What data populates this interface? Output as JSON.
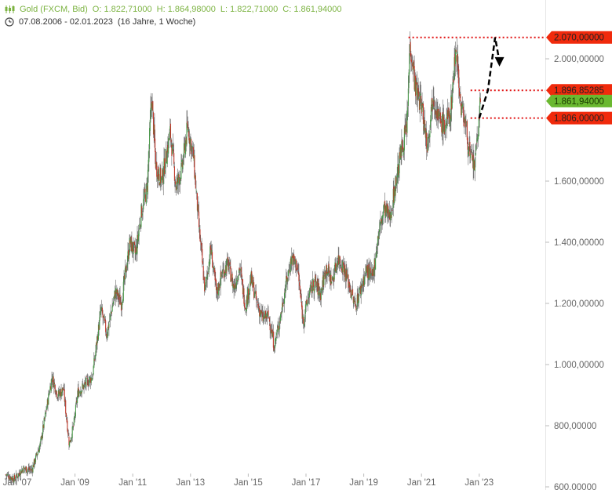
{
  "header": {
    "instrument": "Gold (FXCM, Bid)",
    "open": "O: 1.822,71000",
    "high": "H: 1.864,98000",
    "low": "L: 1.822,71000",
    "close": "C: 1.861,94000",
    "range": "07.08.2006 - 02.01.2023",
    "span": "(16 Jahre, 1 Woche)",
    "icon_chart": "candlestick-icon",
    "icon_clock": "clock-icon"
  },
  "colors": {
    "up": "#4a9a4a",
    "down": "#c0392b",
    "wick": "#666666",
    "level_line": "#e01010",
    "tag_red": "#f02a0c",
    "tag_green": "#6ab830",
    "axis_text": "#666666",
    "projection": "#000000"
  },
  "chart_data": {
    "type": "line",
    "title": "",
    "xlabel": "",
    "ylabel": "",
    "ylim": [
      600,
      2150
    ],
    "y_ticks": [
      {
        "value": 600,
        "label": "600,00000"
      },
      {
        "value": 800,
        "label": "800,00000"
      },
      {
        "value": 1000,
        "label": "1.000,00000"
      },
      {
        "value": 1200,
        "label": "1.200,00000"
      },
      {
        "value": 1400,
        "label": "1.400,00000"
      },
      {
        "value": 1600,
        "label": "1.600,00000"
      },
      {
        "value": 2000,
        "label": "2.000,00000"
      }
    ],
    "x_ticks": [
      {
        "year": 2007,
        "label": "Jan '07"
      },
      {
        "year": 2009,
        "label": "Jan '09"
      },
      {
        "year": 2011,
        "label": "Jan '11"
      },
      {
        "year": 2013,
        "label": "Jan '13"
      },
      {
        "year": 2015,
        "label": "Jan '15"
      },
      {
        "year": 2017,
        "label": "Jan '17"
      },
      {
        "year": 2019,
        "label": "Jan '19"
      },
      {
        "year": 2021,
        "label": "Jan '21"
      },
      {
        "year": 2023,
        "label": "Jan '23"
      }
    ],
    "xlim": [
      2006.6,
      2025.5
    ],
    "series": [
      {
        "points": [
          [
            2006.6,
            640
          ],
          [
            2006.9,
            625
          ],
          [
            2007.2,
            660
          ],
          [
            2007.5,
            655
          ],
          [
            2007.8,
            740
          ],
          [
            2008.0,
            850
          ],
          [
            2008.2,
            960
          ],
          [
            2008.4,
            900
          ],
          [
            2008.6,
            920
          ],
          [
            2008.8,
            740
          ],
          [
            2008.95,
            800
          ],
          [
            2009.1,
            910
          ],
          [
            2009.4,
            940
          ],
          [
            2009.6,
            960
          ],
          [
            2009.9,
            1180
          ],
          [
            2010.1,
            1100
          ],
          [
            2010.4,
            1240
          ],
          [
            2010.6,
            1200
          ],
          [
            2010.9,
            1400
          ],
          [
            2011.1,
            1360
          ],
          [
            2011.3,
            1500
          ],
          [
            2011.5,
            1580
          ],
          [
            2011.65,
            1880
          ],
          [
            2011.8,
            1650
          ],
          [
            2012.0,
            1600
          ],
          [
            2012.3,
            1760
          ],
          [
            2012.5,
            1580
          ],
          [
            2012.7,
            1640
          ],
          [
            2012.9,
            1780
          ],
          [
            2013.1,
            1680
          ],
          [
            2013.3,
            1440
          ],
          [
            2013.5,
            1240
          ],
          [
            2013.7,
            1380
          ],
          [
            2013.9,
            1230
          ],
          [
            2014.1,
            1300
          ],
          [
            2014.3,
            1330
          ],
          [
            2014.5,
            1250
          ],
          [
            2014.7,
            1320
          ],
          [
            2014.9,
            1190
          ],
          [
            2015.1,
            1280
          ],
          [
            2015.3,
            1200
          ],
          [
            2015.5,
            1150
          ],
          [
            2015.7,
            1160
          ],
          [
            2015.9,
            1060
          ],
          [
            2016.1,
            1150
          ],
          [
            2016.3,
            1260
          ],
          [
            2016.5,
            1350
          ],
          [
            2016.7,
            1320
          ],
          [
            2016.9,
            1140
          ],
          [
            2017.1,
            1230
          ],
          [
            2017.3,
            1270
          ],
          [
            2017.5,
            1230
          ],
          [
            2017.7,
            1320
          ],
          [
            2017.9,
            1270
          ],
          [
            2018.1,
            1350
          ],
          [
            2018.3,
            1320
          ],
          [
            2018.5,
            1260
          ],
          [
            2018.7,
            1190
          ],
          [
            2018.9,
            1250
          ],
          [
            2019.1,
            1310
          ],
          [
            2019.3,
            1280
          ],
          [
            2019.5,
            1420
          ],
          [
            2019.7,
            1510
          ],
          [
            2019.9,
            1480
          ],
          [
            2020.1,
            1590
          ],
          [
            2020.3,
            1700
          ],
          [
            2020.5,
            1780
          ],
          [
            2020.6,
            2060
          ],
          [
            2020.8,
            1900
          ],
          [
            2021.0,
            1850
          ],
          [
            2021.2,
            1720
          ],
          [
            2021.4,
            1890
          ],
          [
            2021.6,
            1800
          ],
          [
            2021.8,
            1780
          ],
          [
            2022.0,
            1820
          ],
          [
            2022.2,
            2050
          ],
          [
            2022.35,
            1850
          ],
          [
            2022.5,
            1800
          ],
          [
            2022.7,
            1670
          ],
          [
            2022.85,
            1650
          ],
          [
            2023.0,
            1820
          ],
          [
            2023.05,
            1862
          ]
        ]
      }
    ],
    "levels": [
      {
        "value": 2070,
        "label": "2.070,00000",
        "x_start": 2020.55
      },
      {
        "value": 1896.85,
        "label": "1.896,85285",
        "x_start": 2022.7
      },
      {
        "value": 1806,
        "label": "1.806,00000",
        "x_start": 2022.7
      }
    ],
    "last_price": {
      "value": 1861.94,
      "label": "1.861,94000"
    },
    "projection": [
      [
        2023.0,
        1806
      ],
      [
        2023.3,
        1896.85
      ],
      [
        2023.55,
        2070
      ],
      [
        2023.7,
        1990
      ]
    ]
  }
}
